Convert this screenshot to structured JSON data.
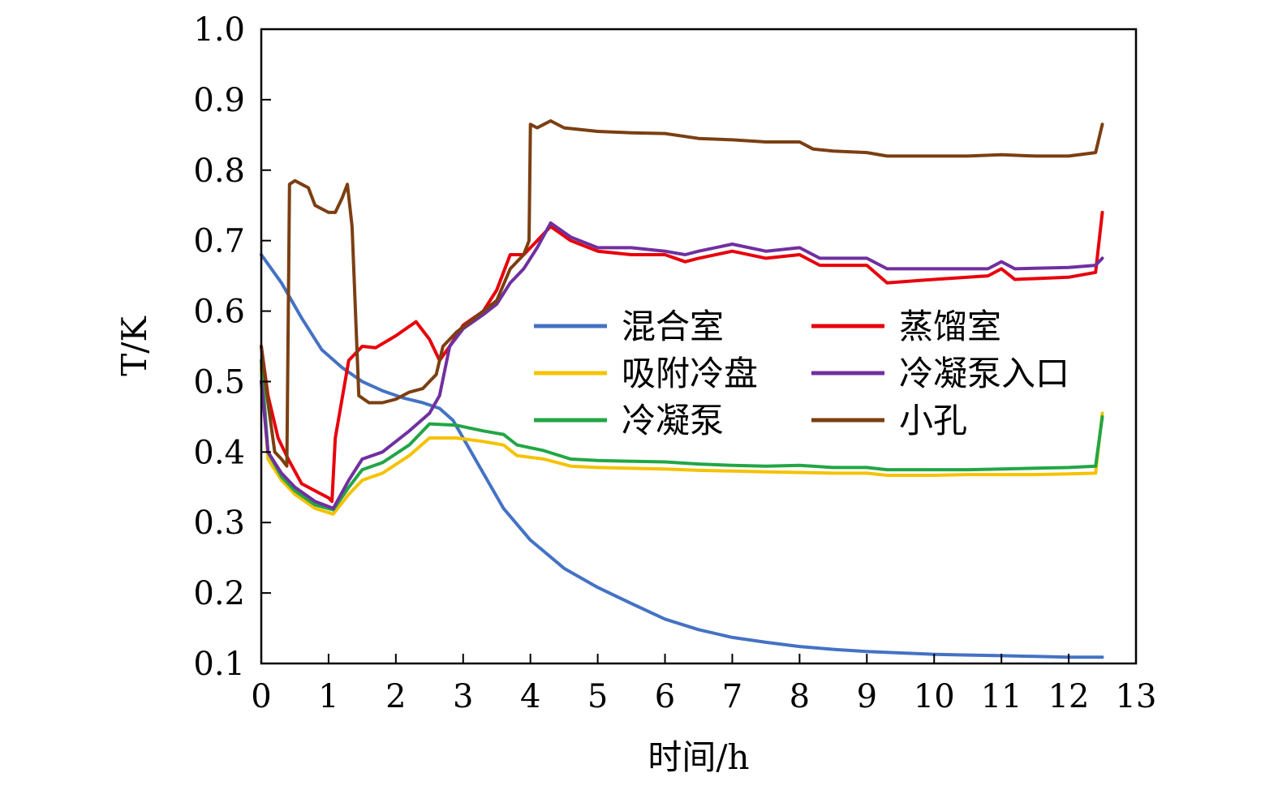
{
  "chart_data": {
    "type": "line",
    "xlabel": "时间/h",
    "ylabel": "T/K",
    "xlim": [
      0,
      13
    ],
    "ylim": [
      0.1,
      1.0
    ],
    "xticks": [
      0,
      1,
      2,
      3,
      4,
      5,
      6,
      7,
      8,
      9,
      10,
      11,
      12,
      13
    ],
    "yticks": [
      0.1,
      0.2,
      0.3,
      0.4,
      0.5,
      0.6,
      0.7,
      0.8,
      0.9,
      1.0
    ],
    "grid": false,
    "legend_position": "center-right",
    "series": [
      {
        "name": "混合室",
        "color": "#4472C4",
        "points": [
          [
            0,
            0.68
          ],
          [
            0.3,
            0.64
          ],
          [
            0.6,
            0.59
          ],
          [
            0.9,
            0.545
          ],
          [
            1.2,
            0.52
          ],
          [
            1.5,
            0.5
          ],
          [
            1.8,
            0.487
          ],
          [
            2.1,
            0.477
          ],
          [
            2.4,
            0.47
          ],
          [
            2.65,
            0.462
          ],
          [
            2.85,
            0.445
          ],
          [
            3.0,
            0.42
          ],
          [
            3.3,
            0.37
          ],
          [
            3.6,
            0.32
          ],
          [
            4.0,
            0.275
          ],
          [
            4.5,
            0.235
          ],
          [
            5.0,
            0.208
          ],
          [
            5.5,
            0.185
          ],
          [
            6.0,
            0.163
          ],
          [
            6.5,
            0.148
          ],
          [
            7.0,
            0.137
          ],
          [
            7.5,
            0.13
          ],
          [
            8.0,
            0.124
          ],
          [
            8.5,
            0.12
          ],
          [
            9.0,
            0.117
          ],
          [
            9.5,
            0.115
          ],
          [
            10.0,
            0.113
          ],
          [
            10.5,
            0.112
          ],
          [
            11.0,
            0.111
          ],
          [
            11.5,
            0.11
          ],
          [
            12.0,
            0.109
          ],
          [
            12.5,
            0.109
          ]
        ]
      },
      {
        "name": "吸附冷盘",
        "color": "#F5C200",
        "points": [
          [
            0,
            0.52
          ],
          [
            0.1,
            0.39
          ],
          [
            0.3,
            0.36
          ],
          [
            0.5,
            0.34
          ],
          [
            0.8,
            0.32
          ],
          [
            1.07,
            0.312
          ],
          [
            1.3,
            0.34
          ],
          [
            1.5,
            0.36
          ],
          [
            1.8,
            0.37
          ],
          [
            2.2,
            0.395
          ],
          [
            2.5,
            0.42
          ],
          [
            2.9,
            0.42
          ],
          [
            3.3,
            0.415
          ],
          [
            3.6,
            0.41
          ],
          [
            3.8,
            0.395
          ],
          [
            4.2,
            0.39
          ],
          [
            4.6,
            0.38
          ],
          [
            5.0,
            0.378
          ],
          [
            6.0,
            0.376
          ],
          [
            6.5,
            0.374
          ],
          [
            7.0,
            0.373
          ],
          [
            7.5,
            0.372
          ],
          [
            8.0,
            0.371
          ],
          [
            8.5,
            0.37
          ],
          [
            9.0,
            0.37
          ],
          [
            9.3,
            0.367
          ],
          [
            10.0,
            0.367
          ],
          [
            10.5,
            0.368
          ],
          [
            11.0,
            0.368
          ],
          [
            11.5,
            0.368
          ],
          [
            12.0,
            0.369
          ],
          [
            12.4,
            0.37
          ],
          [
            12.5,
            0.455
          ]
        ]
      },
      {
        "name": "冷凝泵",
        "color": "#22A645",
        "points": [
          [
            0,
            0.53
          ],
          [
            0.1,
            0.4
          ],
          [
            0.3,
            0.365
          ],
          [
            0.5,
            0.345
          ],
          [
            0.8,
            0.325
          ],
          [
            1.07,
            0.318
          ],
          [
            1.3,
            0.35
          ],
          [
            1.5,
            0.375
          ],
          [
            1.8,
            0.385
          ],
          [
            2.2,
            0.41
          ],
          [
            2.5,
            0.44
          ],
          [
            2.9,
            0.438
          ],
          [
            3.3,
            0.43
          ],
          [
            3.6,
            0.425
          ],
          [
            3.8,
            0.41
          ],
          [
            4.2,
            0.402
          ],
          [
            4.6,
            0.39
          ],
          [
            5.0,
            0.388
          ],
          [
            6.0,
            0.386
          ],
          [
            6.5,
            0.383
          ],
          [
            7.0,
            0.381
          ],
          [
            7.5,
            0.38
          ],
          [
            8.0,
            0.381
          ],
          [
            8.5,
            0.378
          ],
          [
            9.0,
            0.378
          ],
          [
            9.3,
            0.375
          ],
          [
            10.0,
            0.375
          ],
          [
            10.5,
            0.375
          ],
          [
            11.0,
            0.376
          ],
          [
            11.5,
            0.377
          ],
          [
            12.0,
            0.378
          ],
          [
            12.4,
            0.38
          ],
          [
            12.5,
            0.45
          ]
        ]
      },
      {
        "name": "蒸馏室",
        "color": "#E8000B",
        "points": [
          [
            0,
            0.55
          ],
          [
            0.1,
            0.48
          ],
          [
            0.25,
            0.42
          ],
          [
            0.4,
            0.39
          ],
          [
            0.6,
            0.355
          ],
          [
            0.8,
            0.345
          ],
          [
            1.0,
            0.335
          ],
          [
            1.05,
            0.33
          ],
          [
            1.1,
            0.42
          ],
          [
            1.3,
            0.53
          ],
          [
            1.5,
            0.55
          ],
          [
            1.7,
            0.548
          ],
          [
            2.0,
            0.565
          ],
          [
            2.3,
            0.585
          ],
          [
            2.5,
            0.56
          ],
          [
            2.65,
            0.53
          ],
          [
            2.8,
            0.55
          ],
          [
            3.0,
            0.58
          ],
          [
            3.3,
            0.6
          ],
          [
            3.5,
            0.63
          ],
          [
            3.7,
            0.68
          ],
          [
            3.9,
            0.68
          ],
          [
            4.1,
            0.7
          ],
          [
            4.3,
            0.72
          ],
          [
            4.6,
            0.7
          ],
          [
            5.0,
            0.685
          ],
          [
            5.5,
            0.68
          ],
          [
            6.0,
            0.68
          ],
          [
            6.3,
            0.67
          ],
          [
            6.5,
            0.675
          ],
          [
            7.0,
            0.685
          ],
          [
            7.5,
            0.675
          ],
          [
            8.0,
            0.68
          ],
          [
            8.3,
            0.665
          ],
          [
            9.0,
            0.665
          ],
          [
            9.3,
            0.64
          ],
          [
            10.0,
            0.645
          ],
          [
            10.8,
            0.65
          ],
          [
            11.0,
            0.66
          ],
          [
            11.2,
            0.645
          ],
          [
            12.0,
            0.648
          ],
          [
            12.4,
            0.655
          ],
          [
            12.5,
            0.74
          ]
        ]
      },
      {
        "name": "冷凝泵入口",
        "color": "#7030A0",
        "points": [
          [
            0,
            0.5
          ],
          [
            0.1,
            0.4
          ],
          [
            0.3,
            0.37
          ],
          [
            0.5,
            0.35
          ],
          [
            0.8,
            0.33
          ],
          [
            1.07,
            0.32
          ],
          [
            1.3,
            0.36
          ],
          [
            1.5,
            0.39
          ],
          [
            1.8,
            0.4
          ],
          [
            2.2,
            0.43
          ],
          [
            2.5,
            0.455
          ],
          [
            2.65,
            0.48
          ],
          [
            2.8,
            0.55
          ],
          [
            3.0,
            0.575
          ],
          [
            3.3,
            0.595
          ],
          [
            3.5,
            0.61
          ],
          [
            3.7,
            0.64
          ],
          [
            3.9,
            0.66
          ],
          [
            4.1,
            0.69
          ],
          [
            4.3,
            0.725
          ],
          [
            4.6,
            0.705
          ],
          [
            5.0,
            0.69
          ],
          [
            5.5,
            0.69
          ],
          [
            6.0,
            0.685
          ],
          [
            6.3,
            0.68
          ],
          [
            6.5,
            0.685
          ],
          [
            7.0,
            0.695
          ],
          [
            7.5,
            0.685
          ],
          [
            8.0,
            0.69
          ],
          [
            8.3,
            0.675
          ],
          [
            9.0,
            0.675
          ],
          [
            9.3,
            0.66
          ],
          [
            10.0,
            0.66
          ],
          [
            10.8,
            0.66
          ],
          [
            11.0,
            0.67
          ],
          [
            11.2,
            0.66
          ],
          [
            12.0,
            0.662
          ],
          [
            12.4,
            0.665
          ],
          [
            12.5,
            0.675
          ]
        ]
      },
      {
        "name": "小孔",
        "color": "#7B3F12",
        "points": [
          [
            0,
            0.55
          ],
          [
            0.1,
            0.47
          ],
          [
            0.2,
            0.4
          ],
          [
            0.3,
            0.39
          ],
          [
            0.38,
            0.38
          ],
          [
            0.42,
            0.78
          ],
          [
            0.5,
            0.785
          ],
          [
            0.6,
            0.78
          ],
          [
            0.7,
            0.775
          ],
          [
            0.8,
            0.75
          ],
          [
            1.0,
            0.74
          ],
          [
            1.1,
            0.74
          ],
          [
            1.2,
            0.76
          ],
          [
            1.28,
            0.78
          ],
          [
            1.35,
            0.72
          ],
          [
            1.45,
            0.48
          ],
          [
            1.6,
            0.47
          ],
          [
            1.8,
            0.47
          ],
          [
            2.0,
            0.475
          ],
          [
            2.2,
            0.485
          ],
          [
            2.4,
            0.49
          ],
          [
            2.5,
            0.5
          ],
          [
            2.6,
            0.51
          ],
          [
            2.7,
            0.55
          ],
          [
            2.9,
            0.57
          ],
          [
            3.1,
            0.585
          ],
          [
            3.3,
            0.6
          ],
          [
            3.5,
            0.615
          ],
          [
            3.7,
            0.66
          ],
          [
            3.9,
            0.68
          ],
          [
            3.98,
            0.7
          ],
          [
            4.0,
            0.865
          ],
          [
            4.1,
            0.86
          ],
          [
            4.2,
            0.865
          ],
          [
            4.3,
            0.87
          ],
          [
            4.5,
            0.86
          ],
          [
            5.0,
            0.855
          ],
          [
            5.5,
            0.853
          ],
          [
            6.0,
            0.852
          ],
          [
            6.5,
            0.845
          ],
          [
            7.0,
            0.843
          ],
          [
            7.5,
            0.84
          ],
          [
            8.0,
            0.84
          ],
          [
            8.2,
            0.83
          ],
          [
            8.5,
            0.827
          ],
          [
            9.0,
            0.825
          ],
          [
            9.3,
            0.82
          ],
          [
            10.0,
            0.82
          ],
          [
            10.5,
            0.82
          ],
          [
            11.0,
            0.822
          ],
          [
            11.5,
            0.82
          ],
          [
            12.0,
            0.82
          ],
          [
            12.4,
            0.825
          ],
          [
            12.5,
            0.865
          ]
        ]
      }
    ]
  }
}
